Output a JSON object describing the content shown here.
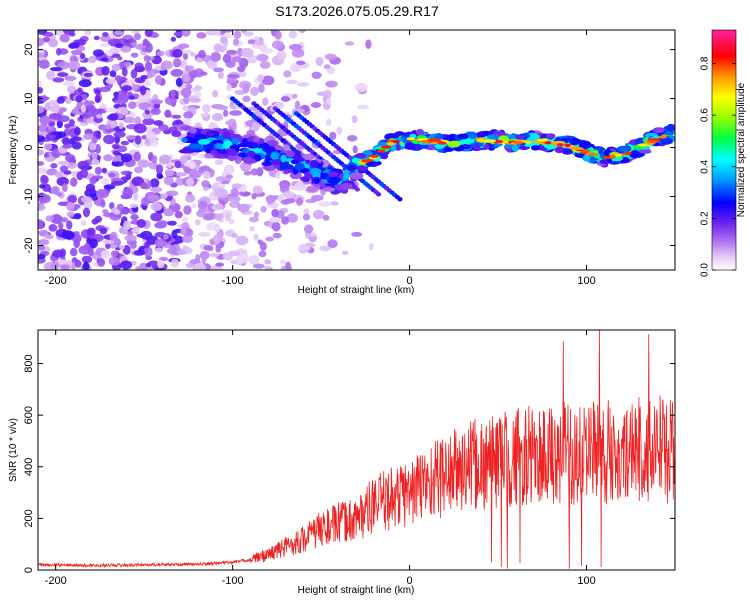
{
  "title": "S173.2026.075.05.29.R17",
  "chart_data": [
    {
      "type": "heatmap",
      "xlabel": "Height of straight line (km)",
      "ylabel": "Frequency (Hz)",
      "xlim": [
        -210,
        150
      ],
      "ylim": [
        -25,
        24
      ],
      "xticks": [
        -200,
        -100,
        0,
        100
      ],
      "yticks": [
        -20,
        -10,
        0,
        10,
        20
      ],
      "colorbar": {
        "label": "Normalized spectral amplitude",
        "range": [
          0,
          0.93
        ],
        "ticks": [
          0,
          0.2,
          0.4,
          0.6,
          0.8
        ],
        "tick_labels": [
          "0.0",
          "0.2",
          "0.4",
          "0.6",
          "0.8"
        ]
      },
      "ridge": {
        "height_km": [
          -125,
          -115,
          -100,
          -90,
          -80,
          -70,
          -60,
          -50,
          -40,
          -35,
          -30,
          -20,
          -10,
          0,
          10,
          20,
          30,
          40,
          50,
          60,
          70,
          80,
          90,
          100,
          110,
          120,
          130,
          140,
          150
        ],
        "frequency_hz": [
          1.5,
          1.0,
          0.5,
          -0.5,
          -1.5,
          -2.5,
          -4.0,
          -5.5,
          -7.0,
          -6.0,
          -3.5,
          -2.0,
          1.0,
          1.5,
          1.5,
          1.0,
          1.0,
          1.5,
          1.5,
          1.0,
          1.5,
          1.0,
          0.5,
          -1.0,
          -2.0,
          -1.5,
          0.0,
          2.0,
          3.0
        ]
      }
    },
    {
      "type": "line",
      "xlabel": "Height of straight line (km)",
      "ylabel": "SNR (10 * v/v)",
      "xlim": [
        -210,
        150
      ],
      "ylim": [
        0,
        930
      ],
      "xticks": [
        -200,
        -100,
        0,
        100
      ],
      "yticks": [
        0,
        200,
        400,
        600,
        800
      ],
      "color": "#ee2222",
      "series": [
        {
          "name": "SNR",
          "height_km": [
            -210,
            -180,
            -150,
            -120,
            -100,
            -90,
            -80,
            -70,
            -60,
            -50,
            -40,
            -30,
            -20,
            -10,
            0,
            10,
            20,
            30,
            40,
            50,
            60,
            70,
            80,
            90,
            100,
            110,
            120,
            130,
            140,
            150
          ],
          "snr": [
            20,
            18,
            20,
            22,
            30,
            40,
            60,
            90,
            120,
            160,
            180,
            200,
            250,
            280,
            300,
            340,
            370,
            390,
            410,
            420,
            440,
            440,
            450,
            450,
            460,
            450,
            470,
            480,
            470,
            450
          ]
        }
      ]
    }
  ]
}
